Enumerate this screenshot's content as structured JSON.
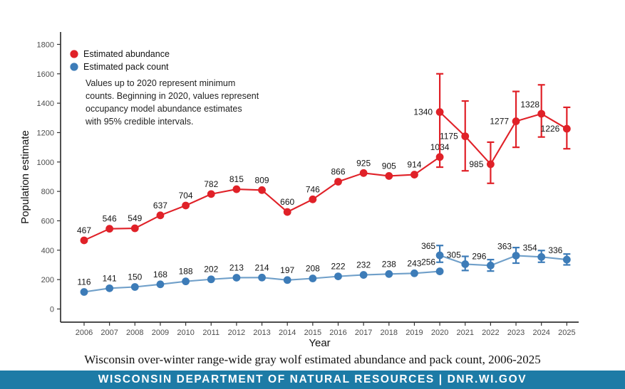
{
  "page": {
    "caption": "Wisconsin over-winter range-wide gray wolf estimated abundance and pack count, 2006-2025",
    "footer_text": "WISCONSIN DEPARTMENT OF NATURAL RESOURCES | DNR.WI.GOV",
    "footer_bg": "#1d7ba6"
  },
  "chart_data": {
    "type": "line",
    "title": "",
    "xlabel": "Year",
    "ylabel": "Population estimate",
    "x": [
      2006,
      2007,
      2008,
      2009,
      2010,
      2011,
      2012,
      2013,
      2014,
      2015,
      2016,
      2017,
      2018,
      2019,
      2020,
      2021,
      2022,
      2023,
      2024,
      2025
    ],
    "ylim": [
      0,
      1800
    ],
    "ytick_step": 200,
    "grid": false,
    "legend_position": "top-left-inside",
    "legend": [
      {
        "label": "Estimated abundance",
        "color": "#e02128"
      },
      {
        "label": "Estimated pack count",
        "color": "#3d7cb8"
      }
    ],
    "annotation": [
      "Values up to 2020 represent minimum",
      "counts. Beginning in 2020, values represent",
      "occupancy model abundance estimates",
      "with 95% credible intervals."
    ],
    "series": [
      {
        "id": "abundance-minimum-counts",
        "name": "Estimated abundance (minimum counts, 2006-2020)",
        "color": "#e02128",
        "line_color": "#e02128",
        "years": [
          2006,
          2007,
          2008,
          2009,
          2010,
          2011,
          2012,
          2013,
          2014,
          2015,
          2016,
          2017,
          2018,
          2019,
          2020
        ],
        "values": [
          467,
          546,
          549,
          637,
          704,
          782,
          815,
          809,
          660,
          746,
          866,
          925,
          905,
          914,
          1034
        ],
        "label_pos": [
          "above",
          "above",
          "above",
          "above",
          "above",
          "above",
          "above",
          "above",
          "above",
          "above",
          "above",
          "above",
          "above",
          "above",
          "above"
        ]
      },
      {
        "id": "abundance-occupancy-estimates",
        "name": "Estimated abundance (occupancy model, 95% credible intervals, 2020-2025)",
        "color": "#e02128",
        "line_color": "#e02128",
        "years": [
          2020,
          2021,
          2022,
          2023,
          2024,
          2025
        ],
        "values": [
          1340,
          1175,
          985,
          1277,
          1328,
          1226
        ],
        "ci_low": [
          965,
          940,
          855,
          1100,
          1170,
          1090
        ],
        "ci_high": [
          1600,
          1415,
          1135,
          1480,
          1525,
          1372
        ],
        "label_pos": [
          "left",
          "left",
          "left",
          "left",
          "above-left",
          "left"
        ]
      },
      {
        "id": "pack-count-minimum-counts",
        "name": "Estimated pack count (minimum counts, 2006-2020)",
        "color": "#3d7cb8",
        "line_color": "#6f9fc9",
        "years": [
          2006,
          2007,
          2008,
          2009,
          2010,
          2011,
          2012,
          2013,
          2014,
          2015,
          2016,
          2017,
          2018,
          2019,
          2020
        ],
        "values": [
          116,
          141,
          150,
          168,
          188,
          202,
          213,
          214,
          197,
          208,
          222,
          232,
          238,
          243,
          256
        ],
        "label_pos": [
          "above",
          "above",
          "above",
          "above",
          "above",
          "above",
          "above",
          "above",
          "above",
          "above",
          "above",
          "above",
          "above",
          "above",
          "above-left"
        ]
      },
      {
        "id": "pack-count-occupancy-estimates",
        "name": "Estimated pack count (occupancy model, 95% credible intervals, 2020-2025)",
        "color": "#3d7cb8",
        "line_color": "#6f9fc9",
        "years": [
          2020,
          2021,
          2022,
          2023,
          2024,
          2025
        ],
        "values": [
          365,
          305,
          296,
          363,
          354,
          336
        ],
        "ci_low": [
          318,
          262,
          258,
          312,
          318,
          300
        ],
        "ci_high": [
          432,
          358,
          336,
          418,
          398,
          374
        ],
        "label_pos": [
          "above-left",
          "above-left",
          "above-left",
          "above-left",
          "above-left",
          "above-left"
        ]
      }
    ]
  }
}
